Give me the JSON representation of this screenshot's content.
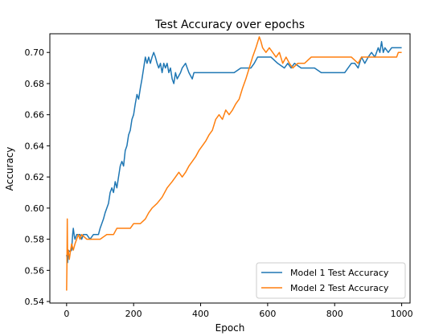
{
  "chart_data": {
    "type": "line",
    "title": "Test Accuracy over epochs",
    "xlabel": "Epoch",
    "ylabel": "Accuracy",
    "xlim": [
      -50,
      1025
    ],
    "ylim": [
      0.539,
      0.712
    ],
    "xticks": [
      0,
      200,
      400,
      600,
      800,
      1000
    ],
    "yticks": [
      0.54,
      0.56,
      0.58,
      0.6,
      0.62,
      0.64,
      0.66,
      0.68,
      0.7
    ],
    "ytick_labels": [
      "0.54",
      "0.56",
      "0.58",
      "0.60",
      "0.62",
      "0.64",
      "0.66",
      "0.68",
      "0.70"
    ],
    "xtick_labels": [
      "0",
      "200",
      "400",
      "600",
      "800",
      "1000"
    ],
    "grid": false,
    "legend": "bottom-right",
    "series": [
      {
        "name": "Model 1 Test Accuracy",
        "color": "#1f77b4",
        "points": [
          [
            0,
            0.57
          ],
          [
            3,
            0.565
          ],
          [
            5,
            0.573
          ],
          [
            10,
            0.572
          ],
          [
            15,
            0.573
          ],
          [
            18,
            0.583
          ],
          [
            20,
            0.587
          ],
          [
            23,
            0.582
          ],
          [
            25,
            0.58
          ],
          [
            30,
            0.583
          ],
          [
            40,
            0.583
          ],
          [
            45,
            0.58
          ],
          [
            50,
            0.583
          ],
          [
            60,
            0.583
          ],
          [
            70,
            0.58
          ],
          [
            80,
            0.583
          ],
          [
            95,
            0.583
          ],
          [
            100,
            0.587
          ],
          [
            105,
            0.59
          ],
          [
            110,
            0.593
          ],
          [
            115,
            0.597
          ],
          [
            120,
            0.6
          ],
          [
            125,
            0.603
          ],
          [
            130,
            0.61
          ],
          [
            135,
            0.613
          ],
          [
            140,
            0.61
          ],
          [
            145,
            0.617
          ],
          [
            150,
            0.613
          ],
          [
            155,
            0.62
          ],
          [
            160,
            0.627
          ],
          [
            165,
            0.63
          ],
          [
            170,
            0.627
          ],
          [
            175,
            0.637
          ],
          [
            180,
            0.64
          ],
          [
            185,
            0.647
          ],
          [
            190,
            0.65
          ],
          [
            195,
            0.657
          ],
          [
            200,
            0.66
          ],
          [
            205,
            0.667
          ],
          [
            210,
            0.673
          ],
          [
            215,
            0.67
          ],
          [
            220,
            0.677
          ],
          [
            225,
            0.683
          ],
          [
            230,
            0.69
          ],
          [
            235,
            0.697
          ],
          [
            240,
            0.693
          ],
          [
            245,
            0.697
          ],
          [
            250,
            0.693
          ],
          [
            255,
            0.697
          ],
          [
            260,
            0.7
          ],
          [
            265,
            0.697
          ],
          [
            270,
            0.693
          ],
          [
            275,
            0.69
          ],
          [
            280,
            0.693
          ],
          [
            285,
            0.687
          ],
          [
            290,
            0.693
          ],
          [
            295,
            0.69
          ],
          [
            300,
            0.693
          ],
          [
            305,
            0.687
          ],
          [
            310,
            0.69
          ],
          [
            315,
            0.683
          ],
          [
            320,
            0.68
          ],
          [
            325,
            0.687
          ],
          [
            330,
            0.683
          ],
          [
            340,
            0.687
          ],
          [
            345,
            0.69
          ],
          [
            355,
            0.693
          ],
          [
            360,
            0.69
          ],
          [
            365,
            0.687
          ],
          [
            375,
            0.683
          ],
          [
            380,
            0.687
          ],
          [
            400,
            0.687
          ],
          [
            440,
            0.687
          ],
          [
            500,
            0.687
          ],
          [
            520,
            0.69
          ],
          [
            550,
            0.69
          ],
          [
            560,
            0.693
          ],
          [
            570,
            0.697
          ],
          [
            590,
            0.697
          ],
          [
            610,
            0.697
          ],
          [
            630,
            0.693
          ],
          [
            650,
            0.69
          ],
          [
            660,
            0.693
          ],
          [
            670,
            0.69
          ],
          [
            680,
            0.693
          ],
          [
            700,
            0.69
          ],
          [
            720,
            0.69
          ],
          [
            740,
            0.69
          ],
          [
            760,
            0.687
          ],
          [
            790,
            0.687
          ],
          [
            810,
            0.687
          ],
          [
            830,
            0.687
          ],
          [
            840,
            0.69
          ],
          [
            850,
            0.693
          ],
          [
            860,
            0.693
          ],
          [
            870,
            0.69
          ],
          [
            880,
            0.697
          ],
          [
            890,
            0.693
          ],
          [
            900,
            0.697
          ],
          [
            910,
            0.7
          ],
          [
            920,
            0.697
          ],
          [
            930,
            0.703
          ],
          [
            935,
            0.7
          ],
          [
            940,
            0.707
          ],
          [
            945,
            0.7
          ],
          [
            950,
            0.703
          ],
          [
            960,
            0.7
          ],
          [
            970,
            0.703
          ],
          [
            1000,
            0.703
          ]
        ]
      },
      {
        "name": "Model 2 Test Accuracy",
        "color": "#ff7f0e",
        "points": [
          [
            0,
            0.547
          ],
          [
            1,
            0.563
          ],
          [
            2,
            0.593
          ],
          [
            3,
            0.57
          ],
          [
            5,
            0.573
          ],
          [
            8,
            0.567
          ],
          [
            12,
            0.573
          ],
          [
            15,
            0.577
          ],
          [
            20,
            0.573
          ],
          [
            25,
            0.577
          ],
          [
            30,
            0.58
          ],
          [
            35,
            0.583
          ],
          [
            40,
            0.58
          ],
          [
            45,
            0.583
          ],
          [
            60,
            0.58
          ],
          [
            80,
            0.58
          ],
          [
            100,
            0.58
          ],
          [
            120,
            0.583
          ],
          [
            140,
            0.583
          ],
          [
            150,
            0.587
          ],
          [
            170,
            0.587
          ],
          [
            190,
            0.587
          ],
          [
            200,
            0.59
          ],
          [
            220,
            0.59
          ],
          [
            235,
            0.593
          ],
          [
            245,
            0.597
          ],
          [
            255,
            0.6
          ],
          [
            270,
            0.603
          ],
          [
            285,
            0.607
          ],
          [
            300,
            0.613
          ],
          [
            315,
            0.617
          ],
          [
            325,
            0.62
          ],
          [
            335,
            0.623
          ],
          [
            345,
            0.62
          ],
          [
            355,
            0.623
          ],
          [
            365,
            0.627
          ],
          [
            375,
            0.63
          ],
          [
            385,
            0.633
          ],
          [
            395,
            0.637
          ],
          [
            405,
            0.64
          ],
          [
            415,
            0.643
          ],
          [
            425,
            0.647
          ],
          [
            435,
            0.65
          ],
          [
            445,
            0.657
          ],
          [
            455,
            0.66
          ],
          [
            465,
            0.657
          ],
          [
            475,
            0.663
          ],
          [
            485,
            0.66
          ],
          [
            495,
            0.663
          ],
          [
            505,
            0.667
          ],
          [
            515,
            0.67
          ],
          [
            525,
            0.677
          ],
          [
            535,
            0.683
          ],
          [
            545,
            0.69
          ],
          [
            555,
            0.697
          ],
          [
            565,
            0.703
          ],
          [
            575,
            0.71
          ],
          [
            580,
            0.707
          ],
          [
            585,
            0.703
          ],
          [
            595,
            0.7
          ],
          [
            605,
            0.703
          ],
          [
            615,
            0.7
          ],
          [
            625,
            0.697
          ],
          [
            635,
            0.7
          ],
          [
            645,
            0.693
          ],
          [
            655,
            0.697
          ],
          [
            665,
            0.693
          ],
          [
            675,
            0.69
          ],
          [
            690,
            0.693
          ],
          [
            710,
            0.693
          ],
          [
            730,
            0.697
          ],
          [
            760,
            0.697
          ],
          [
            790,
            0.697
          ],
          [
            820,
            0.697
          ],
          [
            850,
            0.697
          ],
          [
            870,
            0.693
          ],
          [
            880,
            0.697
          ],
          [
            900,
            0.697
          ],
          [
            930,
            0.697
          ],
          [
            960,
            0.697
          ],
          [
            985,
            0.697
          ],
          [
            990,
            0.7
          ],
          [
            1000,
            0.7
          ]
        ]
      }
    ]
  }
}
